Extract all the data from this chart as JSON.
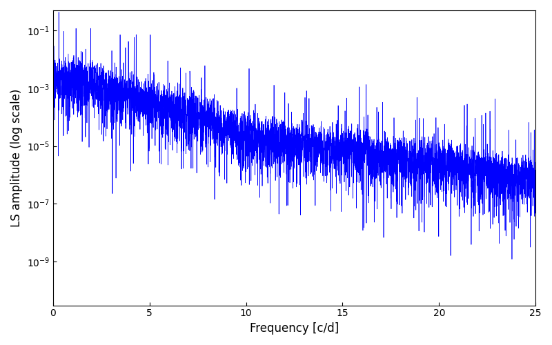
{
  "xlabel": "Frequency [c/d]",
  "ylabel": "LS amplitude (log scale)",
  "xmin": 0,
  "xmax": 25,
  "ymin": 3e-11,
  "ymax": 0.5,
  "line_color": "#0000ff",
  "line_width": 0.5,
  "n_points": 5000,
  "seed": 7,
  "background_color": "#ffffff",
  "figsize": [
    8.0,
    5.0
  ],
  "dpi": 100
}
